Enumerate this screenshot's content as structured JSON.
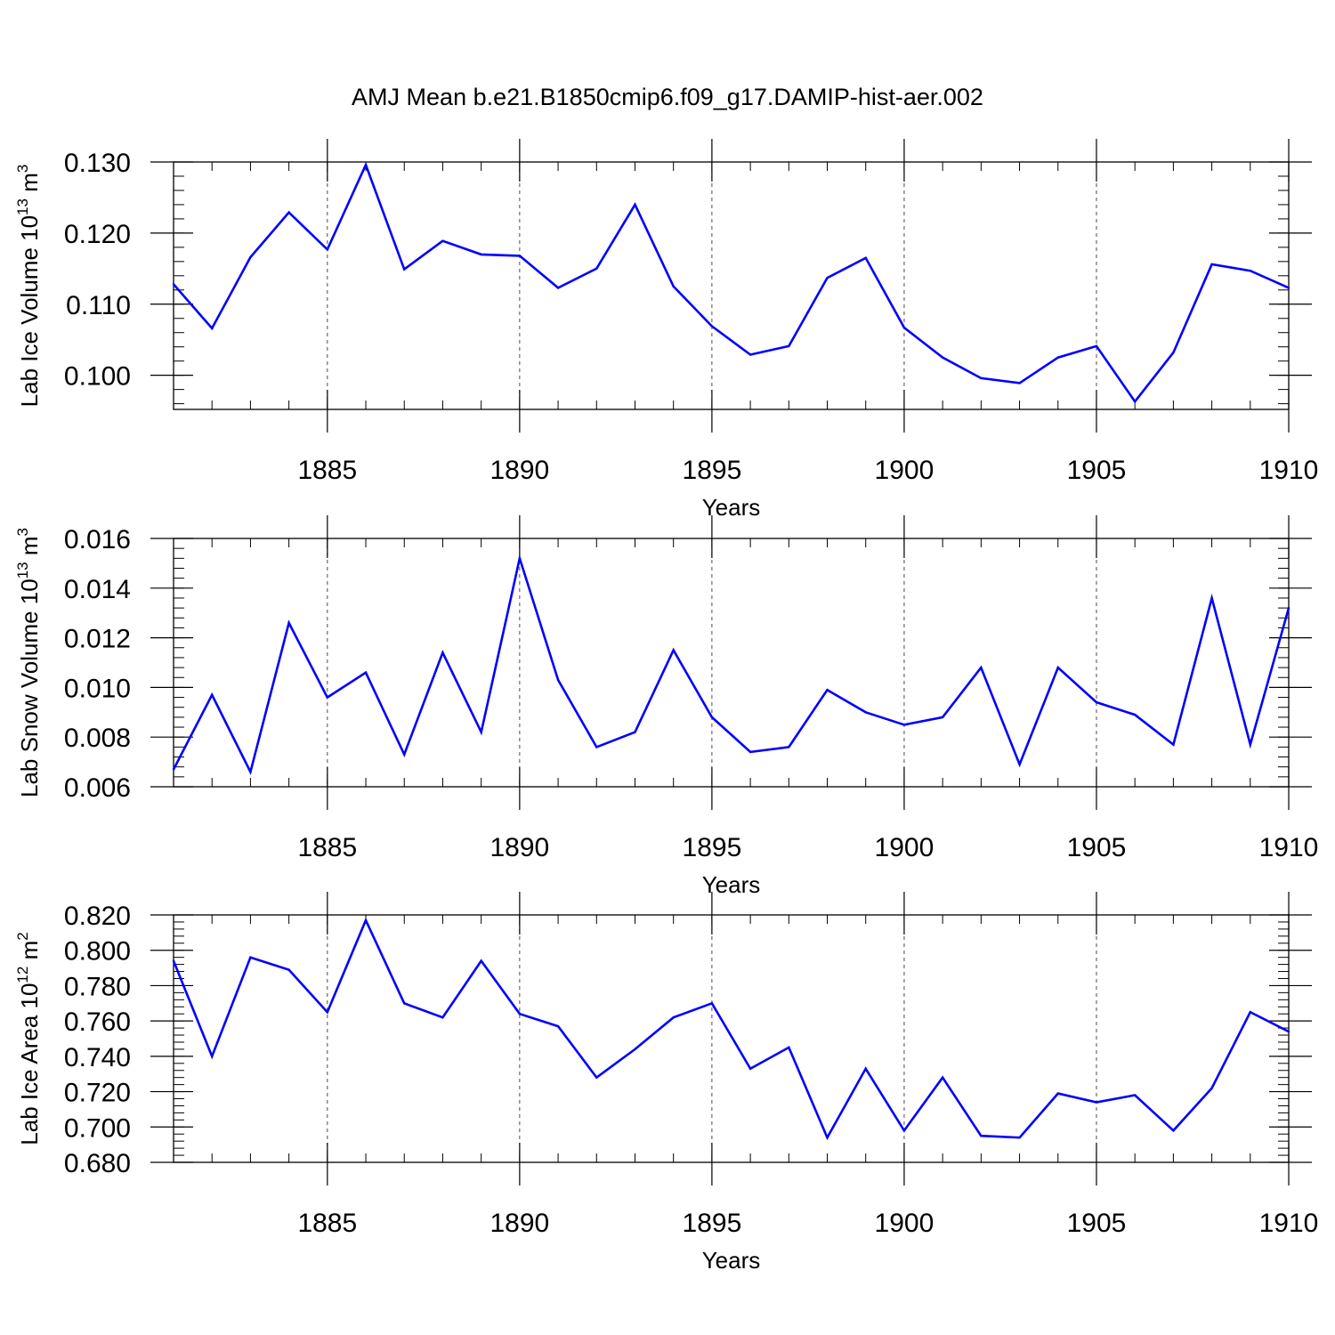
{
  "title": "AMJ Mean b.e21.B1850cmip6.f09_g17.DAMIP-hist-aer.002",
  "colors": {
    "series": "#0000ff",
    "axis": "#000000",
    "grid": "#000000"
  },
  "chart_data": [
    {
      "type": "line",
      "name": "ice-volume",
      "ylabel": {
        "text": "Lab Ice Volume 10",
        "exp": "13",
        "unit": " m",
        "unit_exp": "3"
      },
      "xlabel": "Years",
      "xlim": [
        1881,
        1910
      ],
      "ylim": [
        0.0952,
        0.13
      ],
      "yticks": [
        0.1,
        0.11,
        0.12,
        0.13
      ],
      "ytick_labels": [
        "0.100",
        "0.110",
        "0.120",
        "0.130"
      ],
      "yminor_step": 0.002,
      "xticks": [
        1885,
        1890,
        1895,
        1900,
        1905,
        1910
      ],
      "xtick_labels": [
        "1885",
        "1890",
        "1895",
        "1900",
        "1905",
        "1910"
      ],
      "grid_x": [
        1885,
        1890,
        1895,
        1900,
        1905
      ],
      "x": [
        1881,
        1882,
        1883,
        1884,
        1885,
        1886,
        1887,
        1888,
        1889,
        1890,
        1891,
        1892,
        1893,
        1894,
        1895,
        1896,
        1897,
        1898,
        1899,
        1900,
        1901,
        1902,
        1903,
        1904,
        1905,
        1906,
        1907,
        1908,
        1909,
        1910
      ],
      "y": [
        0.1128,
        0.1066,
        0.1166,
        0.1229,
        0.1177,
        0.1296,
        0.1149,
        0.1189,
        0.117,
        0.1168,
        0.1123,
        0.115,
        0.124,
        0.1125,
        0.1069,
        0.1029,
        0.1041,
        0.1137,
        0.1165,
        0.1067,
        0.1025,
        0.0996,
        0.0989,
        0.1025,
        0.1041,
        0.0963,
        0.1032,
        0.1156,
        0.1147,
        0.1123
      ]
    },
    {
      "type": "line",
      "name": "snow-volume",
      "ylabel": {
        "text": "Lab Snow Volume 10",
        "exp": "13",
        "unit": " m",
        "unit_exp": "3"
      },
      "xlabel": "Years",
      "xlim": [
        1881,
        1910
      ],
      "ylim": [
        0.006,
        0.016
      ],
      "yticks": [
        0.006,
        0.008,
        0.01,
        0.012,
        0.014,
        0.016
      ],
      "ytick_labels": [
        "0.006",
        "0.008",
        "0.010",
        "0.012",
        "0.014",
        "0.016"
      ],
      "yminor_step": 0.0004,
      "xticks": [
        1885,
        1890,
        1895,
        1900,
        1905,
        1910
      ],
      "xtick_labels": [
        "1885",
        "1890",
        "1895",
        "1900",
        "1905",
        "1910"
      ],
      "grid_x": [
        1885,
        1890,
        1895,
        1900,
        1905
      ],
      "x": [
        1881,
        1882,
        1883,
        1884,
        1885,
        1886,
        1887,
        1888,
        1889,
        1890,
        1891,
        1892,
        1893,
        1894,
        1895,
        1896,
        1897,
        1898,
        1899,
        1900,
        1901,
        1902,
        1903,
        1904,
        1905,
        1906,
        1907,
        1908,
        1909,
        1910
      ],
      "y": [
        0.0067,
        0.0097,
        0.0066,
        0.0126,
        0.0096,
        0.0106,
        0.0073,
        0.0114,
        0.0082,
        0.0152,
        0.0103,
        0.0076,
        0.0082,
        0.0115,
        0.0088,
        0.0074,
        0.0076,
        0.0099,
        0.009,
        0.0085,
        0.0088,
        0.0108,
        0.0069,
        0.0108,
        0.0094,
        0.0089,
        0.0077,
        0.0136,
        0.0077,
        0.0132
      ]
    },
    {
      "type": "line",
      "name": "ice-area",
      "ylabel": {
        "text": "Lab Ice Area 10",
        "exp": "12",
        "unit": " m",
        "unit_exp": "2"
      },
      "xlabel": "Years",
      "xlim": [
        1881,
        1910
      ],
      "ylim": [
        0.68,
        0.82
      ],
      "yticks": [
        0.68,
        0.7,
        0.72,
        0.74,
        0.76,
        0.78,
        0.8,
        0.82
      ],
      "ytick_labels": [
        "0.680",
        "0.700",
        "0.720",
        "0.740",
        "0.760",
        "0.780",
        "0.800",
        "0.820"
      ],
      "yminor_step": 0.004,
      "xticks": [
        1885,
        1890,
        1895,
        1900,
        1905,
        1910
      ],
      "xtick_labels": [
        "1885",
        "1890",
        "1895",
        "1900",
        "1905",
        "1910"
      ],
      "grid_x": [
        1885,
        1890,
        1895,
        1900,
        1905
      ],
      "x": [
        1881,
        1882,
        1883,
        1884,
        1885,
        1886,
        1887,
        1888,
        1889,
        1890,
        1891,
        1892,
        1893,
        1894,
        1895,
        1896,
        1897,
        1898,
        1899,
        1900,
        1901,
        1902,
        1903,
        1904,
        1905,
        1906,
        1907,
        1908,
        1909,
        1910
      ],
      "y": [
        0.794,
        0.74,
        0.796,
        0.789,
        0.765,
        0.817,
        0.77,
        0.762,
        0.794,
        0.764,
        0.757,
        0.728,
        0.744,
        0.762,
        0.77,
        0.733,
        0.745,
        0.694,
        0.733,
        0.698,
        0.728,
        0.695,
        0.694,
        0.719,
        0.714,
        0.718,
        0.698,
        0.722,
        0.765,
        0.754
      ]
    }
  ]
}
